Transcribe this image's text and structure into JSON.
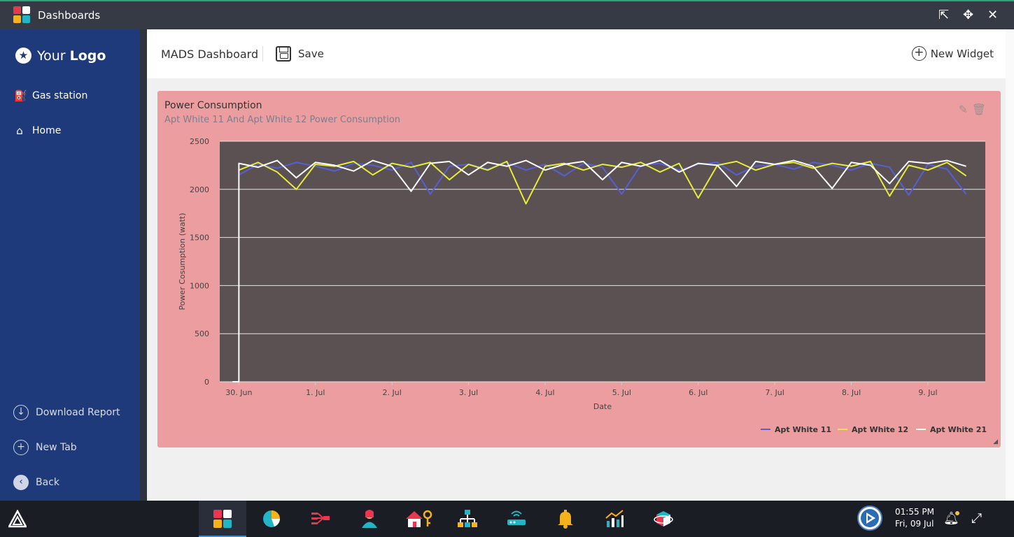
{
  "window": {
    "title": "Dashboards",
    "controls": [
      "exit-fullscreen-icon",
      "collapse-icon",
      "close-icon"
    ]
  },
  "sidebar": {
    "logo": {
      "text_light": "Your",
      "text_bold": "Logo"
    },
    "items": [
      {
        "label": "Gas station",
        "icon": "gas-pump-icon"
      },
      {
        "label": "Home",
        "icon": "home-icon"
      }
    ],
    "bottom_items": [
      {
        "label": "Download Report",
        "icon": "download-icon"
      },
      {
        "label": "New Tab",
        "icon": "plus-icon"
      },
      {
        "label": "Back",
        "icon": "back-icon"
      }
    ]
  },
  "header": {
    "title": "MADS Dashboard",
    "save_label": "Save",
    "new_widget_label": "New Widget"
  },
  "widget": {
    "title": "Power Consumption",
    "subtitle": "Apt White 11 And Apt White 12 Power Consumption",
    "background": "#ec9d9f"
  },
  "chart_data": {
    "type": "line",
    "title": "",
    "xlabel": "Date",
    "ylabel": "Power Cosumption (watt)",
    "ylim": [
      0,
      2500
    ],
    "yticks": [
      "0",
      "500",
      "1000",
      "1500",
      "2000",
      "2500"
    ],
    "xticks": [
      "30. Jun",
      "1. Jul",
      "2. Jul",
      "3. Jul",
      "4. Jul",
      "5. Jul",
      "6. Jul",
      "7. Jul",
      "8. Jul",
      "9. Jul"
    ],
    "xlim": [
      "2021-06-29T18:00",
      "2021-07-09T18:00"
    ],
    "grid": true,
    "legend_position": "bottom-right",
    "plot_background": "#5b5052",
    "x": [
      "2021-06-30T00:00",
      "2021-06-30T06:00",
      "2021-06-30T12:00",
      "2021-06-30T18:00",
      "2021-07-01T00:00",
      "2021-07-01T06:00",
      "2021-07-01T12:00",
      "2021-07-01T18:00",
      "2021-07-02T00:00",
      "2021-07-02T06:00",
      "2021-07-02T12:00",
      "2021-07-02T18:00",
      "2021-07-03T00:00",
      "2021-07-03T06:00",
      "2021-07-03T12:00",
      "2021-07-03T18:00",
      "2021-07-04T00:00",
      "2021-07-04T06:00",
      "2021-07-04T12:00",
      "2021-07-04T18:00",
      "2021-07-05T00:00",
      "2021-07-05T06:00",
      "2021-07-05T12:00",
      "2021-07-05T18:00",
      "2021-07-06T00:00",
      "2021-07-06T06:00",
      "2021-07-06T12:00",
      "2021-07-06T18:00",
      "2021-07-07T00:00",
      "2021-07-07T06:00",
      "2021-07-07T12:00",
      "2021-07-07T18:00",
      "2021-07-08T00:00",
      "2021-07-08T06:00",
      "2021-07-08T12:00",
      "2021-07-08T18:00",
      "2021-07-09T00:00",
      "2021-07-09T06:00",
      "2021-07-09T12:00"
    ],
    "series": [
      {
        "name": "Apt White 11",
        "color": "#5560d6",
        "values": [
          2150,
          2260,
          2220,
          2280,
          2240,
          2190,
          2270,
          2250,
          2200,
          2280,
          1950,
          2240,
          2260,
          2210,
          2280,
          2200,
          2260,
          2140,
          2270,
          2230,
          1950,
          2250,
          2270,
          2200,
          2260,
          2280,
          2150,
          2240,
          2260,
          2210,
          2280,
          2250,
          2200,
          2270,
          2230,
          1940,
          2260,
          2210,
          1950
        ]
      },
      {
        "name": "Apt White 12",
        "color": "#e7ec3a",
        "values": [
          2200,
          2280,
          2180,
          2000,
          2260,
          2240,
          2290,
          2150,
          2270,
          2230,
          2280,
          2100,
          2260,
          2200,
          2290,
          1850,
          2240,
          2270,
          2200,
          2260,
          2230,
          2280,
          2180,
          2270,
          1910,
          2250,
          2290,
          2200,
          2260,
          2280,
          2220,
          2270,
          2240,
          2290,
          1930,
          2250,
          2200,
          2280,
          2140
        ]
      },
      {
        "name": "Apt White 21",
        "color": "#ffffff",
        "values": [
          2270,
          2230,
          2300,
          2120,
          2280,
          2250,
          2190,
          2300,
          2240,
          1980,
          2270,
          2290,
          2150,
          2280,
          2240,
          2300,
          2200,
          2260,
          2290,
          2100,
          2280,
          2240,
          2300,
          2180,
          2270,
          2250,
          2030,
          2290,
          2260,
          2300,
          2240,
          2010,
          2280,
          2250,
          2060,
          2290,
          2270,
          2300,
          2240
        ]
      }
    ],
    "series_lead_in": {
      "name": "Apt White 21",
      "x": [
        "2021-06-29T22:00",
        "2021-06-30T00:00"
      ],
      "values": [
        0,
        0
      ]
    }
  },
  "taskbar": {
    "apps": [
      "dashboards-icon",
      "pie-chart-icon",
      "flow-icon",
      "user-icon",
      "home-key-icon",
      "hierarchy-icon",
      "router-icon",
      "bell-alert-icon",
      "trend-chart-icon",
      "cube-icon"
    ],
    "time": "01:55 PM",
    "date": "Fri, 09 Jul"
  }
}
